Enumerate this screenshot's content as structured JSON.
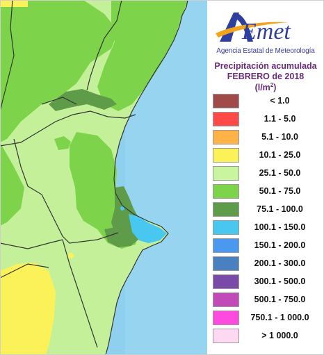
{
  "header": {
    "logo_text": "AEmet",
    "agency": "Agencia Estatal de Meteorología",
    "title_line1": "Precipitación acumulada",
    "title_line2": "FEBRERO de 2018",
    "unit_base": "(l/m",
    "unit_sup": "2",
    "unit_close": ")"
  },
  "colors": {
    "sea": "#8fd0ee",
    "land_low": "#c5f09a",
    "land_mid": "#7dd44a",
    "land_high": "#5f9c4a",
    "yellow": "#fbf25a",
    "accent_text": "#6a2b7a"
  },
  "legend": {
    "items": [
      {
        "label": "< 1.0",
        "color": "#a04a4a"
      },
      {
        "label": "1.1 - 5.0",
        "color": "#ff4a4a"
      },
      {
        "label": "5.1 - 10.0",
        "color": "#ffb347"
      },
      {
        "label": "10.1 - 25.0",
        "color": "#fbf25a"
      },
      {
        "label": "25.1 - 50.0",
        "color": "#c8f59e"
      },
      {
        "label": "50.1 - 75.0",
        "color": "#7dd44a"
      },
      {
        "label": "75.1 - 100.0",
        "color": "#5f9c4a"
      },
      {
        "label": "100.1 - 150.0",
        "color": "#48c8f0"
      },
      {
        "label": "150.1 - 200.0",
        "color": "#4a98f0"
      },
      {
        "label": "200.1 - 300.0",
        "color": "#4a7fc0"
      },
      {
        "label": "300.1 - 500.0",
        "color": "#7a4aa8"
      },
      {
        "label": "500.1 - 750.0",
        "color": "#c24ab8"
      },
      {
        "label": "750.1 - 1 000.0",
        "color": "#ff4ae0"
      },
      {
        "label": "> 1 000.0",
        "color": "#ffd8f2"
      }
    ]
  }
}
